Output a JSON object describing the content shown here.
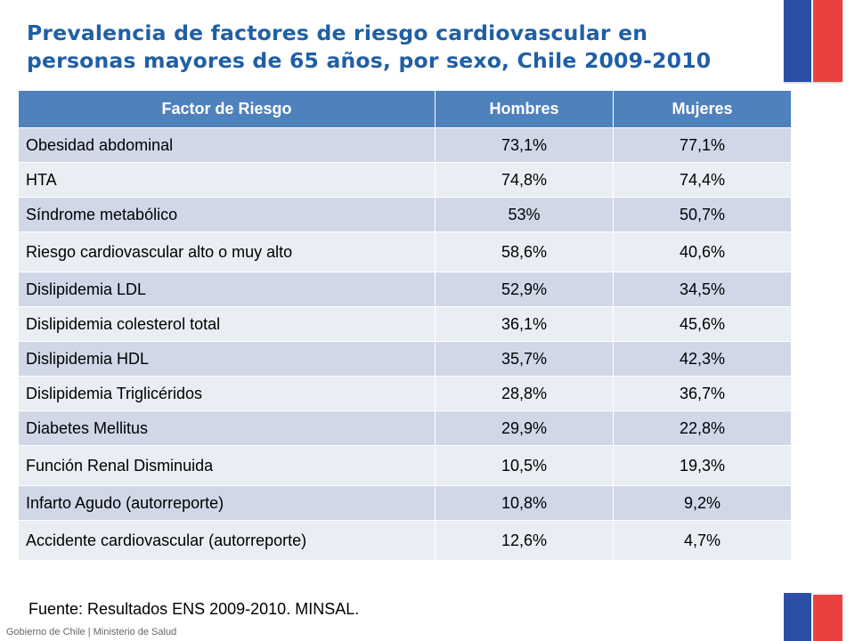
{
  "title": {
    "line1": "Prevalencia de factores de riesgo cardiovascular en",
    "line2": "personas mayores de 65 años, por sexo, Chile 2009-2010"
  },
  "table": {
    "headers": [
      "Factor de Riesgo",
      "Hombres",
      "Mujeres"
    ],
    "rows": [
      {
        "factor": "Obesidad abdominal",
        "hombres": "73,1%",
        "mujeres": "77,1%"
      },
      {
        "factor": "HTA",
        "hombres": "74,8%",
        "mujeres": "74,4%"
      },
      {
        "factor": "Síndrome metabólico",
        "hombres": "53%",
        "mujeres": "50,7%"
      },
      {
        "factor": "Riesgo cardiovascular alto o muy alto",
        "hombres": "58,6%",
        "mujeres": "40,6%"
      },
      {
        "factor": "Dislipidemia LDL",
        "hombres": "52,9%",
        "mujeres": "34,5%"
      },
      {
        "factor": "Dislipidemia colesterol total",
        "hombres": "36,1%",
        "mujeres": "45,6%"
      },
      {
        "factor": "Dislipidemia HDL",
        "hombres": "35,7%",
        "mujeres": "42,3%"
      },
      {
        "factor": "Dislipidemia Triglicéridos",
        "hombres": "28,8%",
        "mujeres": "36,7%"
      },
      {
        "factor": "Diabetes Mellitus",
        "hombres": "29,9%",
        "mujeres": "22,8%"
      },
      {
        "factor": "Función Renal Disminuida",
        "hombres": "10,5%",
        "mujeres": "19,3%"
      },
      {
        "factor": "Infarto Agudo (autorreporte)",
        "hombres": "10,8%",
        "mujeres": "9,2%"
      },
      {
        "factor": "Accidente cardiovascular (autorreporte)",
        "hombres": "12,6%",
        "mujeres": "4,7%"
      }
    ]
  },
  "source": {
    "label": "Fuente",
    "text": ": Resultados ENS 2009-2010. MINSAL."
  },
  "footer": "Gobierno de Chile | Ministerio de Salud",
  "colors": {
    "title": "#1f5fa6",
    "header_bg": "#4f81bd",
    "row_odd": "#d0d8e8",
    "row_even": "#e9edf4",
    "flag_blue": "#2b4fa5",
    "flag_red": "#e8413f"
  }
}
